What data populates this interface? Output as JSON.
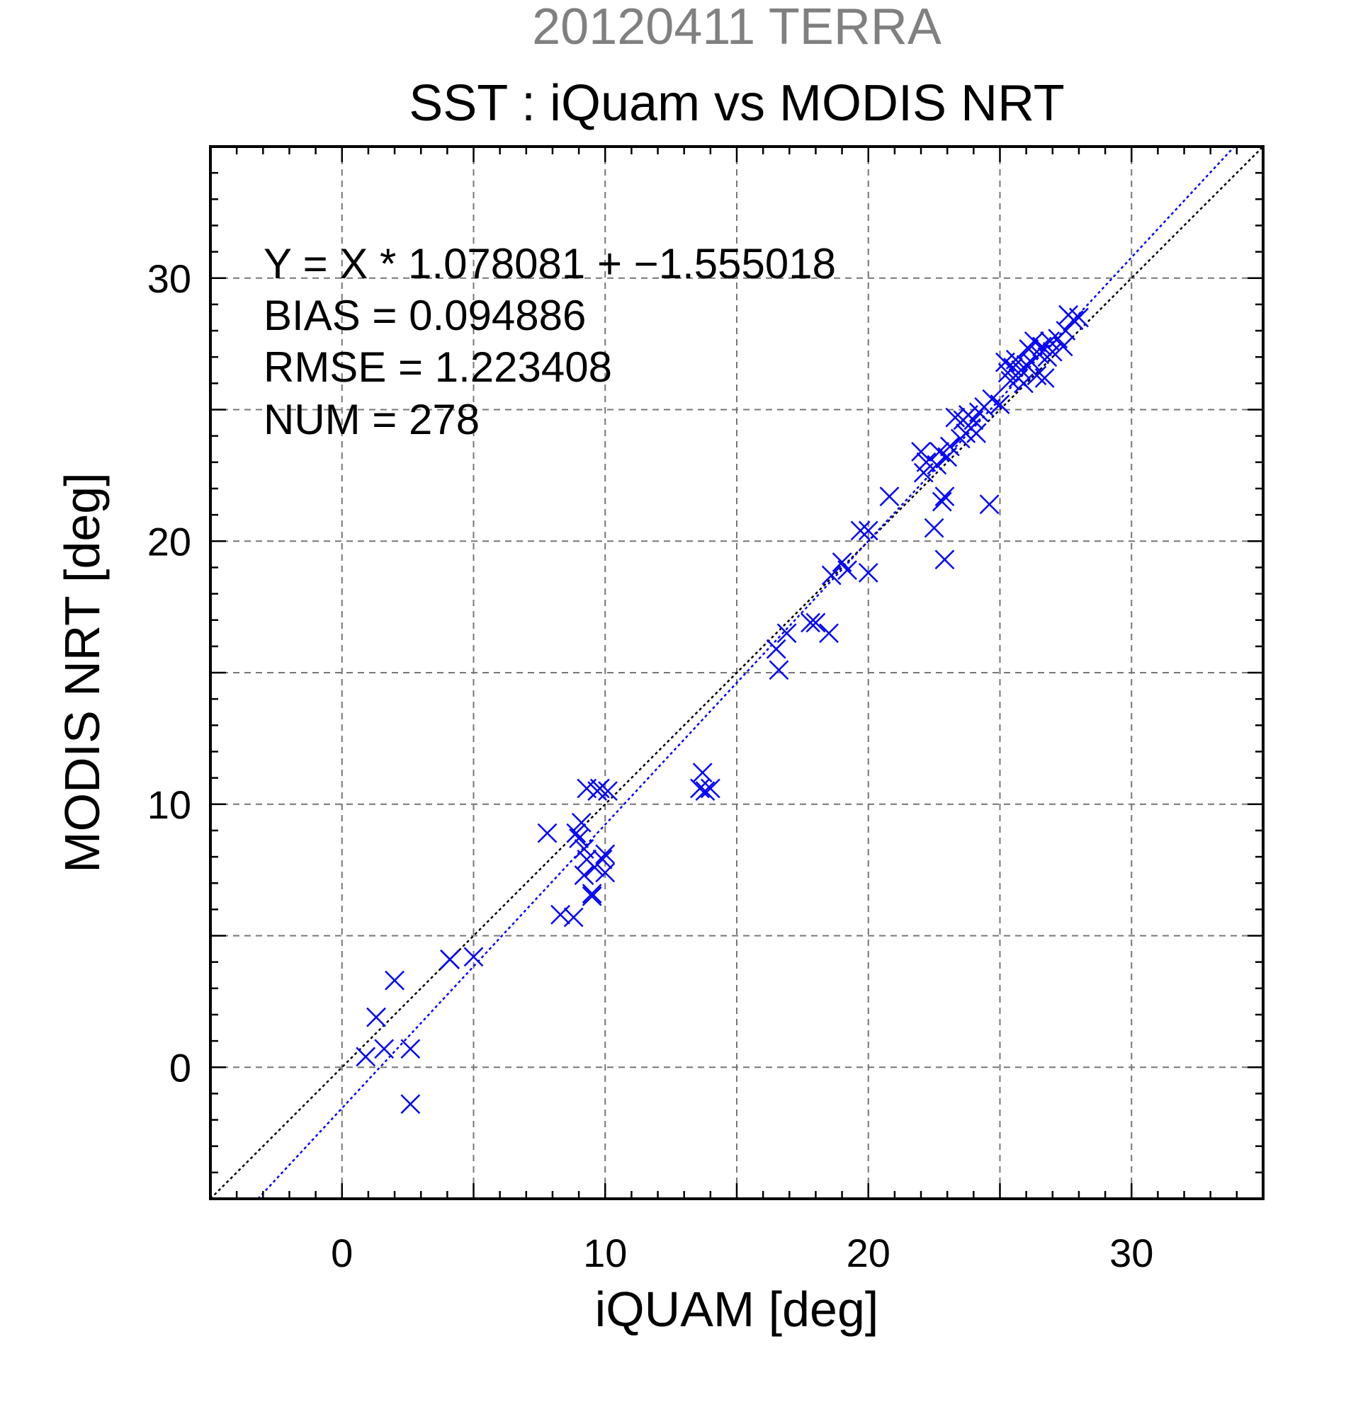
{
  "header": {
    "subtitle": "20120411 TERRA",
    "title": "SST : iQuam vs MODIS NRT"
  },
  "stats": [
    "Y = X * 1.078081 + −1.555018",
    "BIAS = 0.094886",
    "RMSE = 1.223408",
    "NUM = 278"
  ],
  "chart_data": {
    "type": "scatter",
    "title": "SST : iQuam vs MODIS NRT",
    "subtitle": "20120411 TERRA",
    "xlabel": "iQUAM [deg]",
    "ylabel": "MODIS NRT [deg]",
    "xlim": [
      -5,
      35
    ],
    "ylim": [
      -5,
      35
    ],
    "xticks": [
      0,
      10,
      20,
      30
    ],
    "yticks": [
      0,
      10,
      20,
      30
    ],
    "grid": true,
    "grid_step": 5,
    "colors": {
      "points": "#0000ff",
      "fit_line": "#0000ff",
      "identity_line": "#000000",
      "grid": "#777777",
      "subtitle": "#808080"
    },
    "fit_line": {
      "slope": 1.078081,
      "intercept": -1.555018
    },
    "identity_line": {
      "slope": 1,
      "intercept": 0
    },
    "marker": "x",
    "series": [
      {
        "points": [
          [
            0.9,
            0.4
          ],
          [
            1.3,
            1.9
          ],
          [
            1.6,
            0.7
          ],
          [
            2.0,
            3.3
          ],
          [
            2.6,
            0.7
          ],
          [
            2.6,
            -1.4
          ],
          [
            4.1,
            4.1
          ],
          [
            4.1,
            4.1
          ],
          [
            5.0,
            4.2
          ],
          [
            7.8,
            8.9
          ],
          [
            8.3,
            5.8
          ],
          [
            8.8,
            5.7
          ],
          [
            8.9,
            8.9
          ],
          [
            9.0,
            8.7
          ],
          [
            9.1,
            9.3
          ],
          [
            9.2,
            8.3
          ],
          [
            9.2,
            7.3
          ],
          [
            9.3,
            10.6
          ],
          [
            9.3,
            7.9
          ],
          [
            9.5,
            6.5
          ],
          [
            9.5,
            6.6
          ],
          [
            9.6,
            7.6
          ],
          [
            9.7,
            10.5
          ],
          [
            9.8,
            10.6
          ],
          [
            9.9,
            7.9
          ],
          [
            10.0,
            8.1
          ],
          [
            10.0,
            7.4
          ],
          [
            10.1,
            10.5
          ],
          [
            13.6,
            10.6
          ],
          [
            13.7,
            11.2
          ],
          [
            13.8,
            10.5
          ],
          [
            14.0,
            10.6
          ],
          [
            16.5,
            15.9
          ],
          [
            16.6,
            15.1
          ],
          [
            16.9,
            16.5
          ],
          [
            17.8,
            16.9
          ],
          [
            18.0,
            16.9
          ],
          [
            18.5,
            16.5
          ],
          [
            18.6,
            18.7
          ],
          [
            19.0,
            19.2
          ],
          [
            19.2,
            18.9
          ],
          [
            19.7,
            20.4
          ],
          [
            20.0,
            20.4
          ],
          [
            20.0,
            18.8
          ],
          [
            20.8,
            21.7
          ],
          [
            22.0,
            23.4
          ],
          [
            22.1,
            22.6
          ],
          [
            22.2,
            23.0
          ],
          [
            22.5,
            20.5
          ],
          [
            22.6,
            22.9
          ],
          [
            22.7,
            23.4
          ],
          [
            22.8,
            21.5
          ],
          [
            22.9,
            21.7
          ],
          [
            22.9,
            19.3
          ],
          [
            23.0,
            23.2
          ],
          [
            23.1,
            23.6
          ],
          [
            23.3,
            24.7
          ],
          [
            23.5,
            23.9
          ],
          [
            23.6,
            24.6
          ],
          [
            23.7,
            24.1
          ],
          [
            23.8,
            24.8
          ],
          [
            23.9,
            24.3
          ],
          [
            24.0,
            24.6
          ],
          [
            24.1,
            24.1
          ],
          [
            24.2,
            24.9
          ],
          [
            24.4,
            25.1
          ],
          [
            24.6,
            21.4
          ],
          [
            24.7,
            25.4
          ],
          [
            25.0,
            25.2
          ],
          [
            25.2,
            26.8
          ],
          [
            25.3,
            26.4
          ],
          [
            25.4,
            26.1
          ],
          [
            25.5,
            26.6
          ],
          [
            25.6,
            26.9
          ],
          [
            25.7,
            26.2
          ],
          [
            25.8,
            26.5
          ],
          [
            25.9,
            26.0
          ],
          [
            26.0,
            26.7
          ],
          [
            26.1,
            27.3
          ],
          [
            26.2,
            26.8
          ],
          [
            26.3,
            27.6
          ],
          [
            26.4,
            26.3
          ],
          [
            26.5,
            27.1
          ],
          [
            26.6,
            27.4
          ],
          [
            26.7,
            26.2
          ],
          [
            26.8,
            27.0
          ],
          [
            26.9,
            27.6
          ],
          [
            27.0,
            27.2
          ],
          [
            27.2,
            27.7
          ],
          [
            27.4,
            27.4
          ],
          [
            27.5,
            28.0
          ],
          [
            27.6,
            28.6
          ],
          [
            27.8,
            28.4
          ],
          [
            28.0,
            28.5
          ]
        ]
      }
    ]
  }
}
